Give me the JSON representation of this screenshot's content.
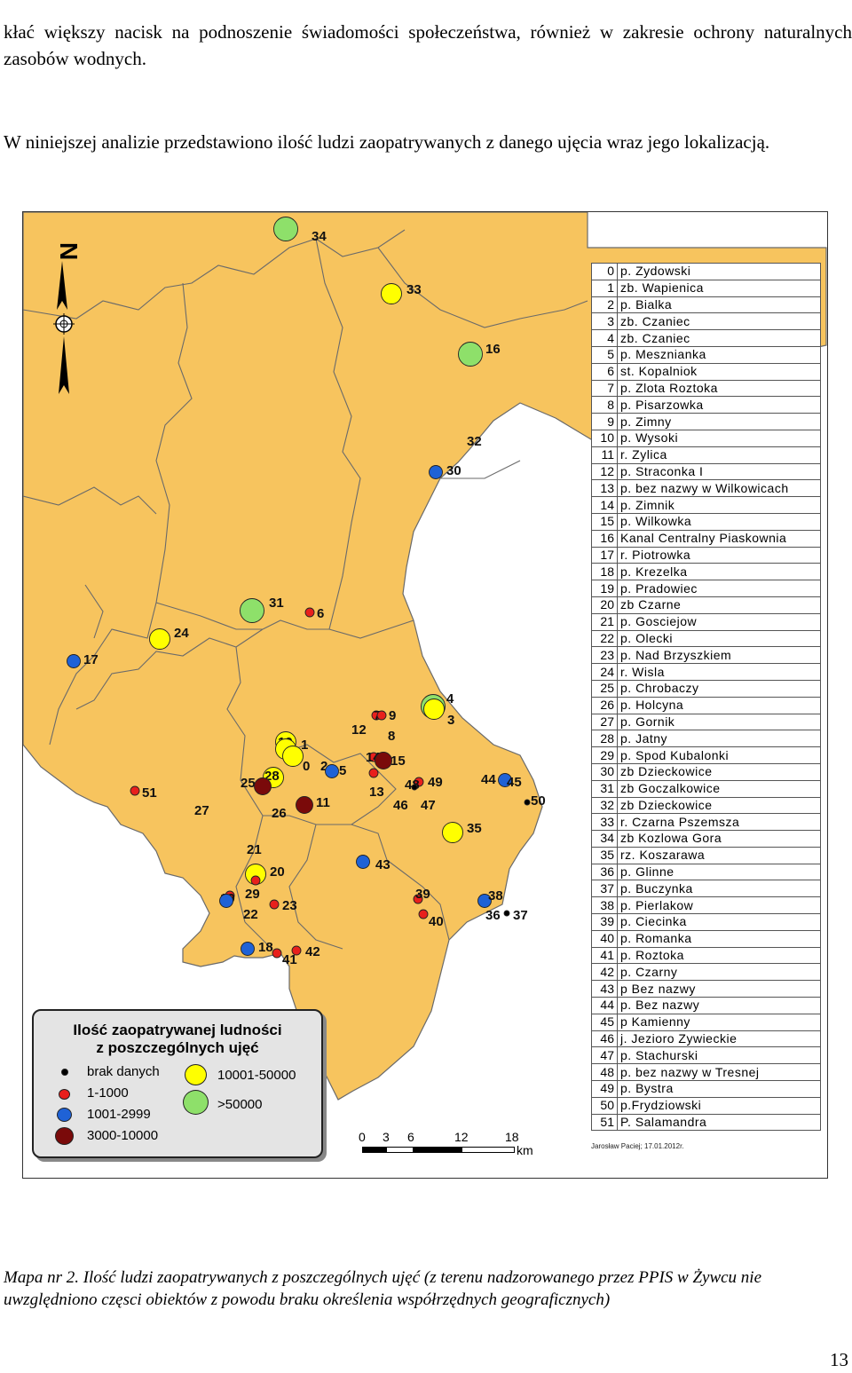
{
  "text": {
    "para1": "kłać większy nacisk na podnoszenie świadomości społeczeństwa, również w zakresie ochrony naturalnych zasobów wodnych.",
    "para2": "W niniejszej analizie przedstawiono ilość ludzi zaopatrywanych z danego ujęcia wraz jego lokalizacją.",
    "caption": "Mapa nr 2. Ilość ludzi zaopatrywanych z poszczególnych ujęć (z terenu nadzorowanego przez PPIS w Żywcu nie uwzględniono częsci obiektów z powodu braku określenia współrzędnych geograficznych)",
    "page_number": "13"
  },
  "map": {
    "north_letter": "N",
    "author": "Jarosław Paciej; 17.01.2012r.",
    "legend": {
      "title_line1": "Ilość zaopatrywanej ludności",
      "title_line2": "z poszczególnych ujęć",
      "classes": [
        {
          "label": "brak danych",
          "color": "#000000"
        },
        {
          "label": "1-1000",
          "color": "#e8201c"
        },
        {
          "label": "1001-2999",
          "color": "#1f62d6"
        },
        {
          "label": "3000-10000",
          "color": "#7a0a0a"
        },
        {
          "label": "10001-50000",
          "color": "#ffff00"
        },
        {
          "label": ">50000",
          "color": "#8ee06a"
        }
      ]
    },
    "scale": {
      "ticks": [
        "0",
        "3",
        "6",
        "12",
        "18"
      ],
      "unit": "km"
    },
    "colors": {
      "land": "#f7c45e",
      "border": "#6a6a6a"
    },
    "intakes": [
      {
        "id": "0",
        "name": "p. Zydowski"
      },
      {
        "id": "1",
        "name": "zb. Wapienica"
      },
      {
        "id": "2",
        "name": "p. Bialka"
      },
      {
        "id": "3",
        "name": "zb. Czaniec"
      },
      {
        "id": "4",
        "name": "zb. Czaniec"
      },
      {
        "id": "5",
        "name": "p. Mesznianka"
      },
      {
        "id": "6",
        "name": "st. Kopalniok"
      },
      {
        "id": "7",
        "name": "p. Zlota Roztoka"
      },
      {
        "id": "8",
        "name": "p. Pisarzowka"
      },
      {
        "id": "9",
        "name": "p. Zimny"
      },
      {
        "id": "10",
        "name": "p. Wysoki"
      },
      {
        "id": "11",
        "name": "r. Zylica"
      },
      {
        "id": "12",
        "name": "p. Straconka I"
      },
      {
        "id": "13",
        "name": "p. bez nazwy w Wilkowicach"
      },
      {
        "id": "14",
        "name": "p. Zimnik"
      },
      {
        "id": "15",
        "name": "p. Wilkowka"
      },
      {
        "id": "16",
        "name": "Kanal Centralny Piaskownia"
      },
      {
        "id": "17",
        "name": "r. Piotrowka"
      },
      {
        "id": "18",
        "name": "p. Krezelka"
      },
      {
        "id": "19",
        "name": "p. Pradowiec"
      },
      {
        "id": "20",
        "name": "zb Czarne"
      },
      {
        "id": "21",
        "name": "p. Gosciejow"
      },
      {
        "id": "22",
        "name": "p. Olecki"
      },
      {
        "id": "23",
        "name": "p. Nad Brzyszkiem"
      },
      {
        "id": "24",
        "name": "r. Wisla"
      },
      {
        "id": "25",
        "name": "p. Chrobaczy"
      },
      {
        "id": "26",
        "name": "p. Holcyna"
      },
      {
        "id": "27",
        "name": "p. Gornik"
      },
      {
        "id": "28",
        "name": "p. Jatny"
      },
      {
        "id": "29",
        "name": "p. Spod Kubalonki"
      },
      {
        "id": "30",
        "name": "zb Dzieckowice"
      },
      {
        "id": "31",
        "name": "zb Goczalkowice"
      },
      {
        "id": "32",
        "name": "zb Dzieckowice"
      },
      {
        "id": "33",
        "name": "r. Czarna Pszemsza"
      },
      {
        "id": "34",
        "name": "zb Kozlowa Gora"
      },
      {
        "id": "35",
        "name": "rz. Koszarawa"
      },
      {
        "id": "36",
        "name": "p. Glinne"
      },
      {
        "id": "37",
        "name": "p. Buczynka"
      },
      {
        "id": "38",
        "name": "p. Pierlakow"
      },
      {
        "id": "39",
        "name": "p. Ciecinka"
      },
      {
        "id": "40",
        "name": "p. Romanka"
      },
      {
        "id": "41",
        "name": "p. Roztoka"
      },
      {
        "id": "42",
        "name": "p. Czarny"
      },
      {
        "id": "43",
        "name": "p Bez nazwy"
      },
      {
        "id": "44",
        "name": "p. Bez nazwy"
      },
      {
        "id": "45",
        "name": "p Kamienny"
      },
      {
        "id": "46",
        "name": "j. Jezioro Zywieckie"
      },
      {
        "id": "47",
        "name": "p. Stachurski"
      },
      {
        "id": "48",
        "name": "p. bez nazwy w Tresnej"
      },
      {
        "id": "49",
        "name": "p. Bystra"
      },
      {
        "id": "50",
        "name": "p.Frydziowski"
      },
      {
        "id": "51",
        "name": "P. Salamandra"
      }
    ]
  }
}
